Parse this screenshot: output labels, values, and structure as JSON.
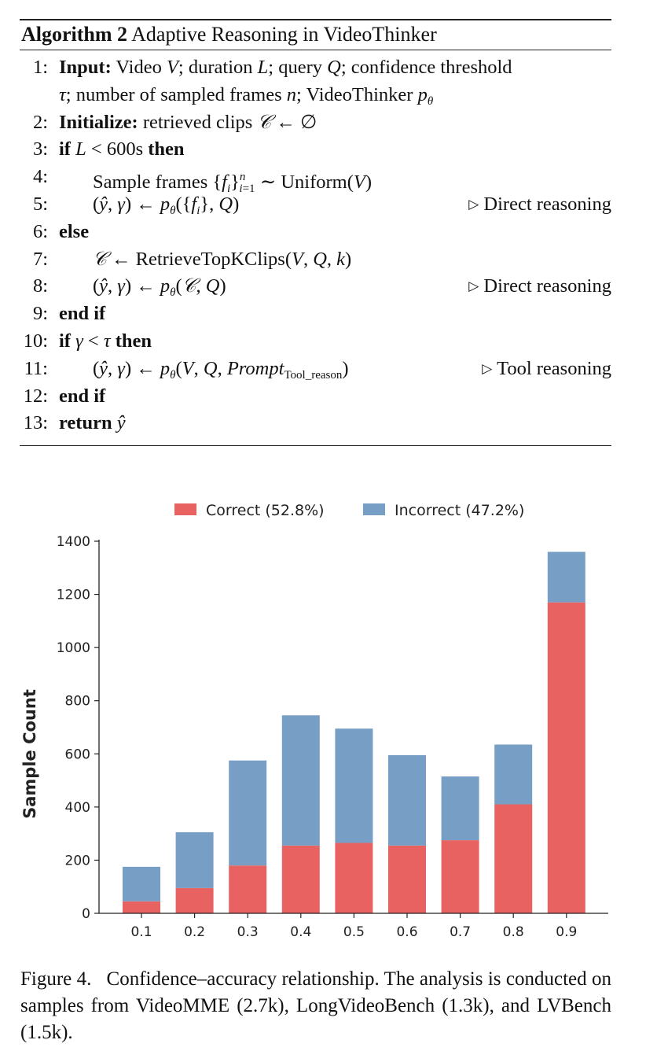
{
  "algorithm": {
    "label": "Algorithm 2",
    "title": "Adaptive Reasoning in VideoThinker",
    "lines": {
      "n1": "1:",
      "n2": "2:",
      "n3": "3:",
      "n4": "4:",
      "n5": "5:",
      "n6": "6:",
      "n7": "7:",
      "n8": "8:",
      "n9": "9:",
      "n10": "10:",
      "n11": "11:",
      "n12": "12:",
      "n13": "13:",
      "input_kw": "Input:",
      "init_kw": "Initialize:",
      "init_text": "retrieved clips",
      "sample_text": "Sample frames",
      "uniform": "Uniform",
      "retrieve": "RetrieveTopKClips",
      "if_kw": "if",
      "then_kw": "then",
      "else_kw": "else",
      "end_if": "end if",
      "return_kw": "return",
      "comment_direct": "Direct reasoning",
      "comment_tool": "Tool reasoning",
      "prompt_sub": "Tool_reason",
      "threshold": "600s"
    }
  },
  "chart_data": {
    "type": "bar",
    "stacked": true,
    "categories": [
      "0.1",
      "0.2",
      "0.3",
      "0.4",
      "0.5",
      "0.6",
      "0.7",
      "0.8",
      "0.9"
    ],
    "series": [
      {
        "name": "Correct (52.8%)",
        "color": "#e96262",
        "values": [
          45,
          95,
          180,
          255,
          265,
          255,
          275,
          410,
          1170
        ]
      },
      {
        "name": "Incorrect (47.2%)",
        "color": "#779fc6",
        "values": [
          130,
          210,
          395,
          490,
          430,
          340,
          240,
          225,
          190
        ]
      }
    ],
    "ylabel": "Sample Count",
    "xlabel": "",
    "ylim": [
      0,
      1400
    ],
    "yticks": [
      0,
      200,
      400,
      600,
      800,
      1000,
      1200,
      1400
    ],
    "legend_position": "top-center",
    "grid": false
  },
  "caption": {
    "label": "Figure 4.",
    "text": "Confidence–accuracy relationship. The analysis is conducted on samples from VideoMME (2.7k), LongVideoBench (1.3k), and LVBench (1.5k)."
  }
}
